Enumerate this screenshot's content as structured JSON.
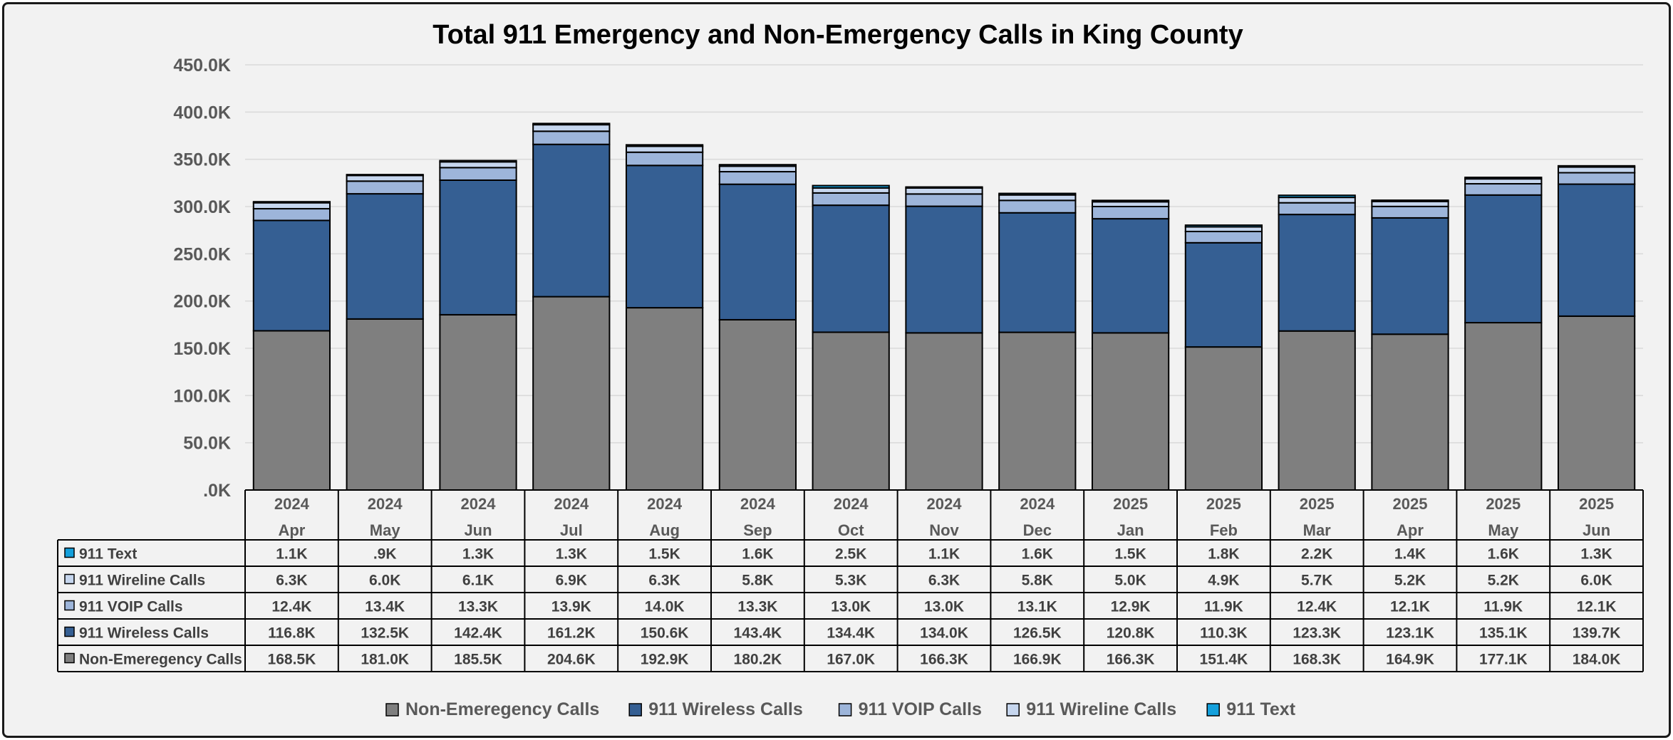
{
  "chart_data": {
    "type": "bar",
    "stacked": true,
    "title": "Total 911 Emergency and Non-Emergency Calls in King County",
    "categories": [
      [
        "2024",
        "Apr"
      ],
      [
        "2024",
        "May"
      ],
      [
        "2024",
        "Jun"
      ],
      [
        "2024",
        "Jul"
      ],
      [
        "2024",
        "Aug"
      ],
      [
        "2024",
        "Sep"
      ],
      [
        "2024",
        "Oct"
      ],
      [
        "2024",
        "Nov"
      ],
      [
        "2024",
        "Dec"
      ],
      [
        "2025",
        "Jan"
      ],
      [
        "2025",
        "Feb"
      ],
      [
        "2025",
        "Mar"
      ],
      [
        "2025",
        "Apr"
      ],
      [
        "2025",
        "May"
      ],
      [
        "2025",
        "Jun"
      ]
    ],
    "ylim": [
      0,
      450000
    ],
    "yticks": [
      ".0K",
      "50.0K",
      "100.0K",
      "150.0K",
      "200.0K",
      "250.0K",
      "300.0K",
      "350.0K",
      "400.0K",
      "450.0K"
    ],
    "grid": true,
    "legend_position": "bottom",
    "series": [
      {
        "name": "Non-Emeregency Calls",
        "color": "#7f7f7f",
        "values": [
          168500,
          181000,
          185500,
          204600,
          192900,
          180200,
          167000,
          166300,
          166900,
          166300,
          151400,
          168300,
          164900,
          177100,
          184000
        ],
        "labels": [
          "168.5K",
          "181.0K",
          "185.5K",
          "204.6K",
          "192.9K",
          "180.2K",
          "167.0K",
          "166.3K",
          "166.9K",
          "166.3K",
          "151.4K",
          "168.3K",
          "164.9K",
          "177.1K",
          "184.0K"
        ]
      },
      {
        "name": "911 Wireless Calls",
        "color": "#355f93",
        "values": [
          116800,
          132500,
          142400,
          161200,
          150600,
          143400,
          134400,
          134000,
          126500,
          120800,
          110300,
          123300,
          123100,
          135100,
          139700
        ],
        "labels": [
          "116.8K",
          "132.5K",
          "142.4K",
          "161.2K",
          "150.6K",
          "143.4K",
          "134.4K",
          "134.0K",
          "126.5K",
          "120.8K",
          "110.3K",
          "123.3K",
          "123.1K",
          "135.1K",
          "139.7K"
        ]
      },
      {
        "name": "911 VOIP Calls",
        "color": "#9db5da",
        "values": [
          12400,
          13400,
          13300,
          13900,
          14000,
          13300,
          13000,
          13000,
          13100,
          12900,
          11900,
          12400,
          12100,
          11900,
          12100
        ],
        "labels": [
          "12.4K",
          "13.4K",
          "13.3K",
          "13.9K",
          "14.0K",
          "13.3K",
          "13.0K",
          "13.0K",
          "13.1K",
          "12.9K",
          "11.9K",
          "12.4K",
          "12.1K",
          "11.9K",
          "12.1K"
        ]
      },
      {
        "name": "911 Wireline Calls",
        "color": "#c6d6ee",
        "values": [
          6300,
          6000,
          6100,
          6900,
          6300,
          5800,
          5300,
          6300,
          5800,
          5000,
          4900,
          5700,
          5200,
          5200,
          6000
        ],
        "labels": [
          "6.3K",
          "6.0K",
          "6.1K",
          "6.9K",
          "6.3K",
          "5.8K",
          "5.3K",
          "6.3K",
          "5.8K",
          "5.0K",
          "4.9K",
          "5.7K",
          "5.2K",
          "5.2K",
          "6.0K"
        ]
      },
      {
        "name": "911 Text",
        "color": "#14a0dc",
        "values": [
          1100,
          900,
          1300,
          1300,
          1500,
          1600,
          2500,
          1100,
          1600,
          1500,
          1800,
          2200,
          1400,
          1600,
          1300
        ],
        "labels": [
          "1.1K",
          ".9K",
          "1.3K",
          "1.3K",
          "1.5K",
          "1.6K",
          "2.5K",
          "1.1K",
          "1.6K",
          "1.5K",
          "1.8K",
          "2.2K",
          "1.4K",
          "1.6K",
          "1.3K"
        ]
      }
    ]
  }
}
